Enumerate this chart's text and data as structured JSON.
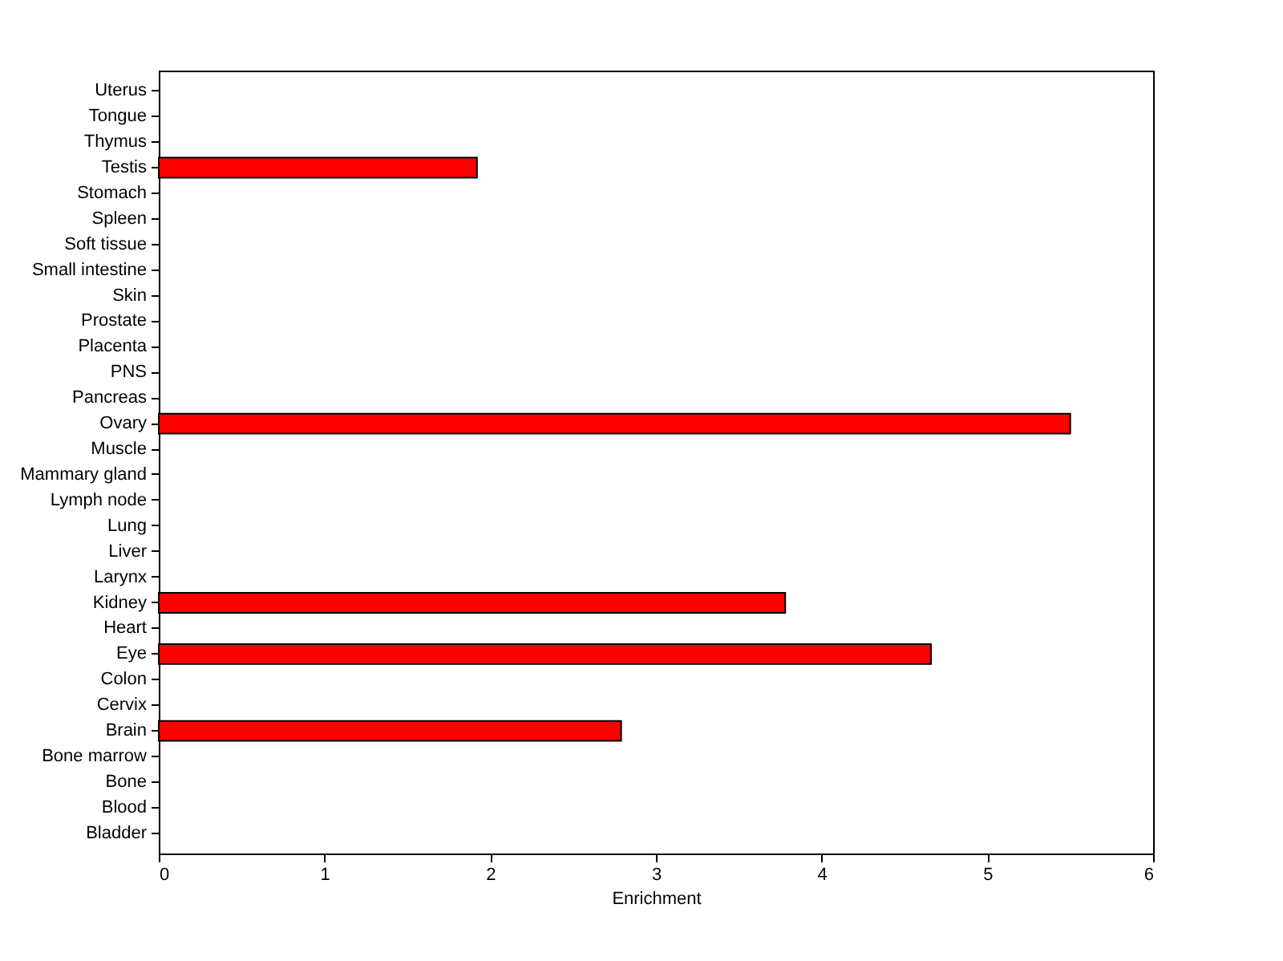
{
  "chart_data": {
    "type": "bar",
    "orientation": "horizontal",
    "xlabel": "Enrichment",
    "categories": [
      "Uterus",
      "Tongue",
      "Thymus",
      "Testis",
      "Stomach",
      "Spleen",
      "Soft tissue",
      "Small intestine",
      "Skin",
      "Prostate",
      "Placenta",
      "PNS",
      "Pancreas",
      "Ovary",
      "Muscle",
      "Mammary gland",
      "Lymph node",
      "Lung",
      "Liver",
      "Larynx",
      "Kidney",
      "Heart",
      "Eye",
      "Colon",
      "Cervix",
      "Brain",
      "Bone marrow",
      "Bone",
      "Blood",
      "Bladder"
    ],
    "values": [
      0,
      0,
      0,
      1.92,
      0,
      0,
      0,
      0,
      0,
      0,
      0,
      0,
      0,
      5.5,
      0,
      0,
      0,
      0,
      0,
      0,
      3.78,
      0,
      4.66,
      0,
      0,
      2.79,
      0,
      0,
      0,
      0
    ],
    "color": "#ff0000",
    "xlim": [
      0,
      6
    ],
    "xticks": [
      0,
      1,
      2,
      3,
      4,
      5,
      6
    ],
    "grid": false
  }
}
